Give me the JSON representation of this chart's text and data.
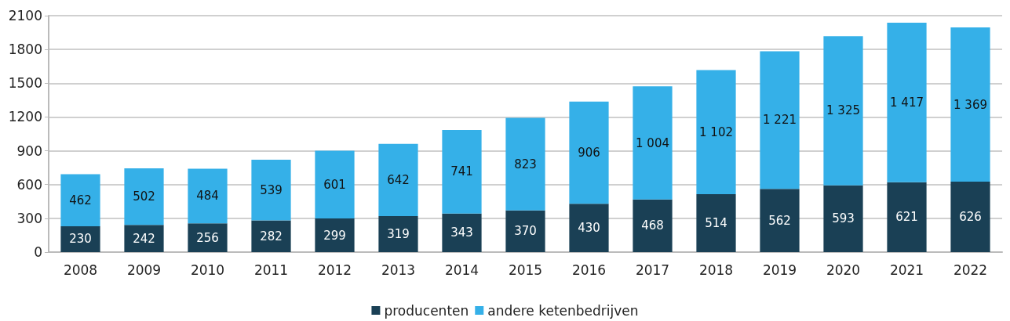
{
  "chart_data": {
    "type": "bar",
    "stacked": true,
    "categories": [
      "2008",
      "2009",
      "2010",
      "2011",
      "2012",
      "2013",
      "2014",
      "2015",
      "2016",
      "2017",
      "2018",
      "2019",
      "2020",
      "2021",
      "2022"
    ],
    "series": [
      {
        "name": "producenten",
        "color": "#1a4055",
        "values": [
          230,
          242,
          256,
          282,
          299,
          319,
          343,
          370,
          430,
          468,
          514,
          562,
          593,
          621,
          626
        ],
        "value_labels": [
          "230",
          "242",
          "256",
          "282",
          "299",
          "319",
          "343",
          "370",
          "430",
          "468",
          "514",
          "562",
          "593",
          "621",
          "626"
        ]
      },
      {
        "name": "andere ketenbedrijven",
        "color": "#35b0e8",
        "values": [
          462,
          502,
          484,
          539,
          601,
          642,
          741,
          823,
          906,
          1004,
          1102,
          1221,
          1325,
          1417,
          1369
        ],
        "value_labels": [
          "462",
          "502",
          "484",
          "539",
          "601",
          "642",
          "741",
          "823",
          "906",
          "1 004",
          "1 102",
          "1 221",
          "1 325",
          "1 417",
          "1 369"
        ]
      }
    ],
    "ylim": [
      0,
      2100
    ],
    "yticks": [
      0,
      300,
      600,
      900,
      1200,
      1500,
      1800,
      2100
    ],
    "grid": "y",
    "legend": "bottom"
  }
}
